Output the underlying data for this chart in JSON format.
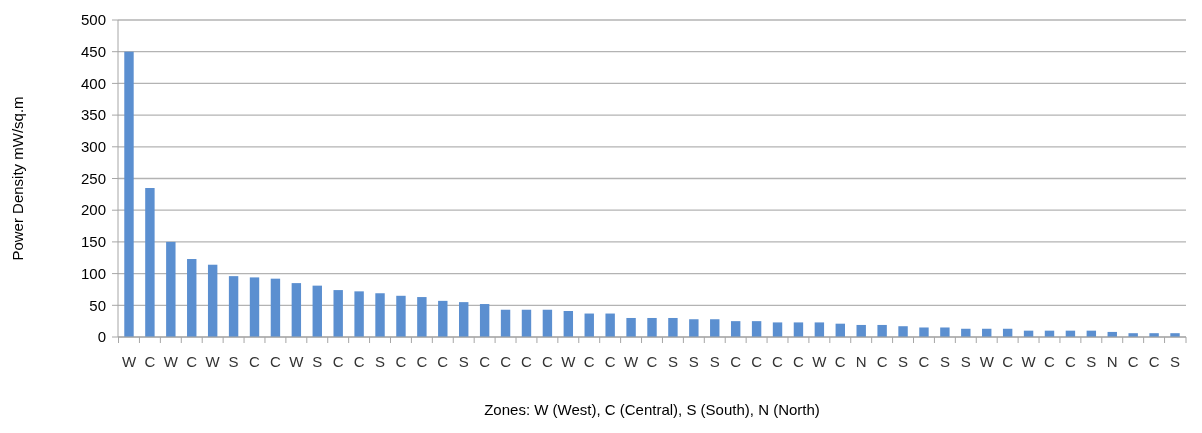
{
  "chart_data": {
    "type": "bar",
    "xlabel": "Zones: W (West), C (Central), S (South), N (North)",
    "ylabel": "Power Density mW/sq.m",
    "categories": [
      "W",
      "C",
      "W",
      "C",
      "W",
      "S",
      "C",
      "C",
      "W",
      "S",
      "C",
      "C",
      "S",
      "C",
      "C",
      "C",
      "S",
      "C",
      "C",
      "C",
      "C",
      "W",
      "C",
      "C",
      "W",
      "C",
      "S",
      "S",
      "S",
      "C",
      "C",
      "C",
      "C",
      "W",
      "C",
      "N",
      "C",
      "S",
      "C",
      "S",
      "S",
      "W",
      "C",
      "W",
      "C",
      "C",
      "S",
      "N",
      "C",
      "C",
      "S"
    ],
    "values": [
      450,
      235,
      150,
      123,
      114,
      96,
      94,
      92,
      85,
      81,
      74,
      72,
      69,
      65,
      63,
      57,
      55,
      52,
      43,
      43,
      43,
      41,
      37,
      37,
      30,
      30,
      30,
      28,
      28,
      25,
      25,
      23,
      23,
      23,
      21,
      19,
      19,
      17,
      15,
      15,
      13,
      13,
      13,
      10,
      10,
      10,
      10,
      8,
      6,
      6,
      6
    ],
    "color": "#5b8fd0",
    "ylim": [
      0,
      500
    ],
    "yticks": [
      0,
      50,
      100,
      150,
      200,
      250,
      300,
      350,
      400,
      450,
      500
    ],
    "grid": "y"
  }
}
